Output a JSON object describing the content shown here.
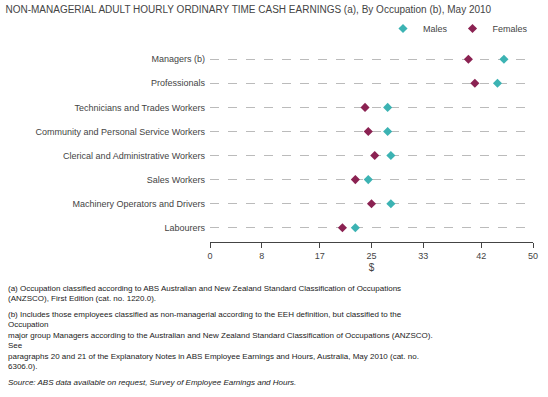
{
  "chart_data": {
    "type": "dot",
    "title": "NON-MANAGERIAL ADULT HOURLY ORDINARY TIME CASH EARNINGS (a), By Occupation (b), May 2010",
    "orientation": "horizontal",
    "categories": [
      "Managers (b)",
      "Professionals",
      "Technicians and Trades Workers",
      "Community and Personal Service Workers",
      "Clerical and Administrative Workers",
      "Sales Workers",
      "Machinery Operators and Drivers",
      "Labourers"
    ],
    "series": [
      {
        "name": "Males",
        "color": "#3CB3B3",
        "marker": "diamond",
        "values": [
          45.5,
          44.5,
          27.5,
          27.5,
          28.0,
          24.5,
          28.0,
          22.5
        ]
      },
      {
        "name": "Females",
        "color": "#8B2252",
        "marker": "diamond",
        "values": [
          40.0,
          41.0,
          24.0,
          24.5,
          25.5,
          22.5,
          25.0,
          20.5
        ]
      }
    ],
    "xlabel": "$",
    "xlim": [
      0,
      50
    ],
    "xticks": [
      0,
      8,
      17,
      25,
      33,
      42,
      50
    ],
    "grid": true,
    "legend": "upper right",
    "annotations": [
      "(a) Occupation classified according to ABS Australian and New Zealand Standard Classification of Occupations (ANZSCO), First Edition (cat. no. 1220.0).",
      "(b) Includes those employees classified as non-managerial according to the EEH definition, but classified to the Occupation\nmajor group Managers according to the Australian and New Zealand Standard Classification of Occupations (ANZSCO). See\nparagraphs 20 and 21 of the Explanatory Notes in ABS Employee Earnings and Hours, Australia, May 2010 (cat. no. 6306.0).",
      "Source: ABS data available on request, Survey of Employee Earnings and Hours."
    ]
  }
}
